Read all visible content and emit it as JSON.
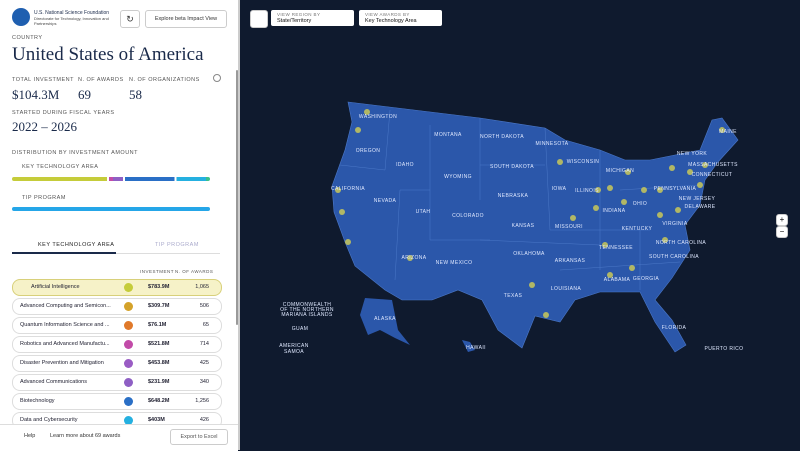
{
  "header": {
    "org_name": "U.S. National Science Foundation",
    "org_sub": "Directorate for Technology, Innovation and Partnerships",
    "beta_button": "Explore beta Impact View"
  },
  "panel": {
    "country_label": "COUNTRY",
    "country": "United States of America",
    "stats": [
      {
        "label": "TOTAL INVESTMENT",
        "value": "$104.3M"
      },
      {
        "label": "N. OF AWARDS",
        "value": "69"
      },
      {
        "label": "N. OF ORGANIZATIONS",
        "value": "58"
      }
    ],
    "years_label": "STARTED DURING FISCAL YEARS",
    "years": "2022 – 2026",
    "distribution_label": "DISTRIBUTION BY INVESTMENT AMOUNT",
    "key_tech_label": "KEY TECHNOLOGY AREA",
    "tip_label": "TIP PROGRAM",
    "tabs": [
      "KEY TECHNOLOGY AREA",
      "TIP PROGRAM"
    ],
    "table_headers": [
      "INVESTMENT",
      "N. OF AWARDS"
    ],
    "rows": [
      [
        "Artificial Intelligence",
        "$783.9M",
        "1,065"
      ],
      [
        "Advanced Computing and Semicon...",
        "$309.7M",
        "506"
      ],
      [
        "Quantum Information Science and ...",
        "$76.1M",
        "65"
      ],
      [
        "Robotics and Advanced Manufactu...",
        "$521.8M",
        "714"
      ],
      [
        "Disaster Prevention and Mitigation",
        "$453.8M",
        "425"
      ],
      [
        "Advanced Communications",
        "$231.9M",
        "340"
      ],
      [
        "Biotechnology",
        "$648.2M",
        "1,256"
      ],
      [
        "Data and Cybersecurity",
        "$403M",
        "426"
      ]
    ],
    "footer": {
      "help": "Help",
      "learn_more": "Learn more about 69 awards",
      "export": "Export to Excel"
    }
  },
  "map": {
    "region_label": "VIEW REGION BY",
    "region_value": "State/Territory",
    "awards_label": "VIEW AWARDS BY",
    "awards_value": "Key Technology Area",
    "zoom_in": "+",
    "zoom_out": "−",
    "states": [
      "WASHINGTON",
      "OREGON",
      "IDAHO",
      "MONTANA",
      "NORTH DAKOTA",
      "MINNESOTA",
      "WISCONSIN",
      "MICHIGAN",
      "NEW YORK",
      "MAINE",
      "MASSACHUSETTS",
      "CONNECTICUT",
      "SOUTH DAKOTA",
      "WYOMING",
      "NEBRASKA",
      "IOWA",
      "ILLINOIS",
      "INDIANA",
      "OHIO",
      "PENNSYLVANIA",
      "NEW JERSEY",
      "DELAWARE",
      "CALIFORNIA",
      "NEVADA",
      "UTAH",
      "COLORADO",
      "KANSAS",
      "MISSOURI",
      "KENTUCKY",
      "VIRGINIA",
      "NORTH CAROLINA",
      "TENNESSEE",
      "SOUTH CAROLINA",
      "ARIZONA",
      "NEW MEXICO",
      "OKLAHOMA",
      "ARKANSAS",
      "ALABAMA",
      "GEORGIA",
      "TEXAS",
      "LOUISIANA",
      "FLORIDA",
      "ALASKA",
      "HAWAII",
      "PUERTO RICO",
      "GUAM",
      "AMERICAN",
      "SAMOA",
      "COMMONWEALTH",
      "OF THE NORTHERN",
      "MARIANA ISLANDS"
    ]
  }
}
